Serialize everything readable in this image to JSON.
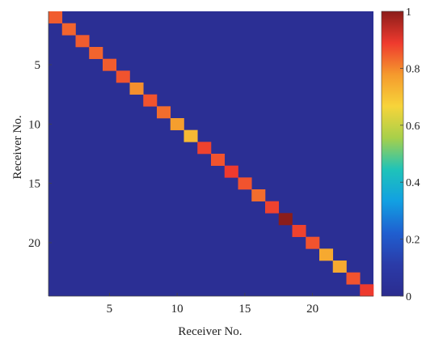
{
  "chart_data": {
    "type": "heatmap",
    "xlabel": "Receiver No.",
    "ylabel": "Receiver No.",
    "rows": 24,
    "cols": 24,
    "x_ticks": [
      "5",
      "10",
      "15",
      "20"
    ],
    "x_tick_values": [
      5,
      10,
      15,
      20
    ],
    "y_ticks": [
      "5",
      "10",
      "15",
      "20"
    ],
    "y_tick_values": [
      5,
      10,
      15,
      20
    ],
    "off_diagonal_value": 0.02,
    "diagonal_values": [
      0.85,
      0.84,
      0.85,
      0.84,
      0.85,
      0.86,
      0.79,
      0.86,
      0.83,
      0.77,
      0.72,
      0.88,
      0.86,
      0.89,
      0.86,
      0.83,
      0.88,
      1.0,
      0.88,
      0.86,
      0.75,
      0.75,
      0.86,
      0.89
    ],
    "colorbar": {
      "min": 0,
      "max": 1,
      "ticks": [
        "0",
        "0.2",
        "0.4",
        "0.6",
        "0.8",
        "1"
      ],
      "tick_values": [
        0,
        0.2,
        0.4,
        0.6,
        0.8,
        1
      ]
    },
    "colormap": [
      "#2b2c8f",
      "#2b3ba8",
      "#1f5fd0",
      "#12a0e2",
      "#1fc3b9",
      "#a7d04a",
      "#f7d43a",
      "#f59a2d",
      "#ef3a2e",
      "#8b1d1a"
    ]
  }
}
